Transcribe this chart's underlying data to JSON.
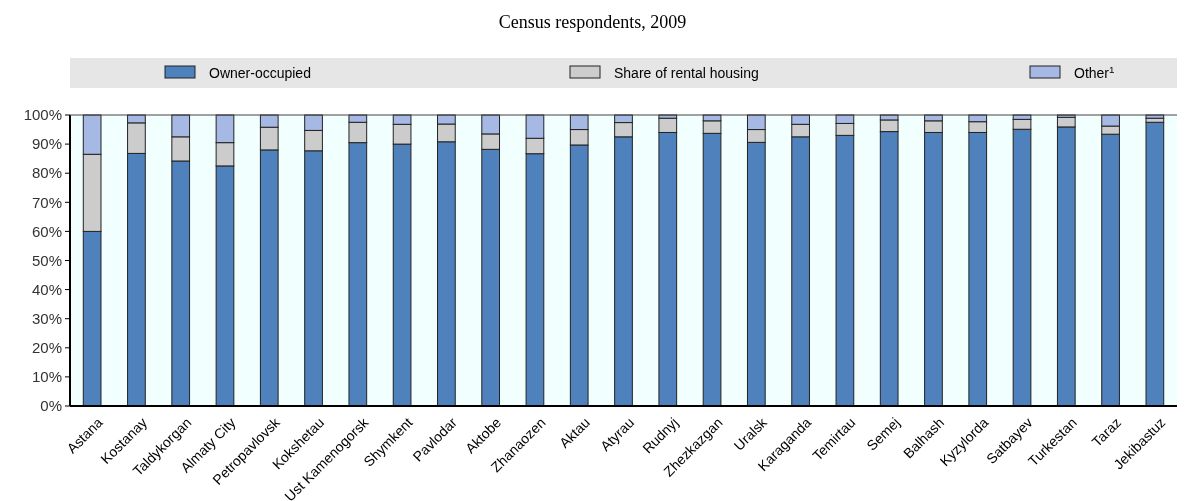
{
  "chart_data": {
    "type": "bar",
    "title": "Census respondents, 2009",
    "stacked": true,
    "legend": "top",
    "categories": [
      "Astana",
      "Kostanay",
      "Taldykorgan",
      "Almaty City",
      "Petropavlovsk",
      "Kokshetau",
      "Ust Kamenogorsk",
      "Shymkent",
      "Pavlodar",
      "Aktobe",
      "Zhanaozen",
      "Aktau",
      "Atyrau",
      "Rudnyj",
      "Zhezkazgan",
      "Uralsk",
      "Karaganda",
      "Temirtau",
      "Semej",
      "Balhash",
      "Kyzylorda",
      "Satbayev",
      "Turkestan",
      "Taraz",
      "Jekibastuz"
    ],
    "series": [
      {
        "name": "Owner-occupied",
        "color": "#4f81bd",
        "values": [
          60,
          86.8,
          84.2,
          82.5,
          88,
          87.7,
          90.5,
          90,
          90.8,
          88.2,
          86.7,
          89.7,
          92.5,
          94,
          93.7,
          90.6,
          92.5,
          93,
          94.3,
          94,
          94,
          95.1,
          95.9,
          93.4,
          97.5
        ]
      },
      {
        "name": "Share of rental housing",
        "color": "#cccccc",
        "values": [
          26.5,
          10.5,
          8.3,
          8,
          7.8,
          7,
          7,
          6.8,
          6.1,
          5.3,
          5.3,
          5.3,
          4.9,
          4.9,
          4.3,
          4.4,
          4.3,
          4.1,
          4,
          4,
          3.7,
          3.4,
          3.3,
          2.8,
          1.4
        ]
      },
      {
        "name": "Other$^{1}$",
        "color": "#a6b8e4",
        "values": [
          13.5,
          2.7,
          7.5,
          9.5,
          4.2,
          5.3,
          2.5,
          3.2,
          3.1,
          6.5,
          8,
          5,
          2.6,
          1.1,
          2,
          5,
          3.2,
          2.9,
          1.7,
          2,
          2.3,
          1.5,
          0.8,
          3.8,
          1.1
        ]
      }
    ],
    "ylim": [
      0,
      100
    ],
    "yticks": [
      {
        "value": 0,
        "label": "0%"
      },
      {
        "value": 10,
        "label": "10%"
      },
      {
        "value": 20,
        "label": "20%"
      },
      {
        "value": 30,
        "label": "30%"
      },
      {
        "value": 40,
        "label": "40%"
      },
      {
        "value": 50,
        "label": "50%"
      },
      {
        "value": 60,
        "label": "60%"
      },
      {
        "value": 70,
        "label": "70%"
      },
      {
        "value": 80,
        "label": "80%"
      },
      {
        "value": 90,
        "label": "90%"
      },
      {
        "value": 100,
        "label": "100%"
      }
    ]
  }
}
